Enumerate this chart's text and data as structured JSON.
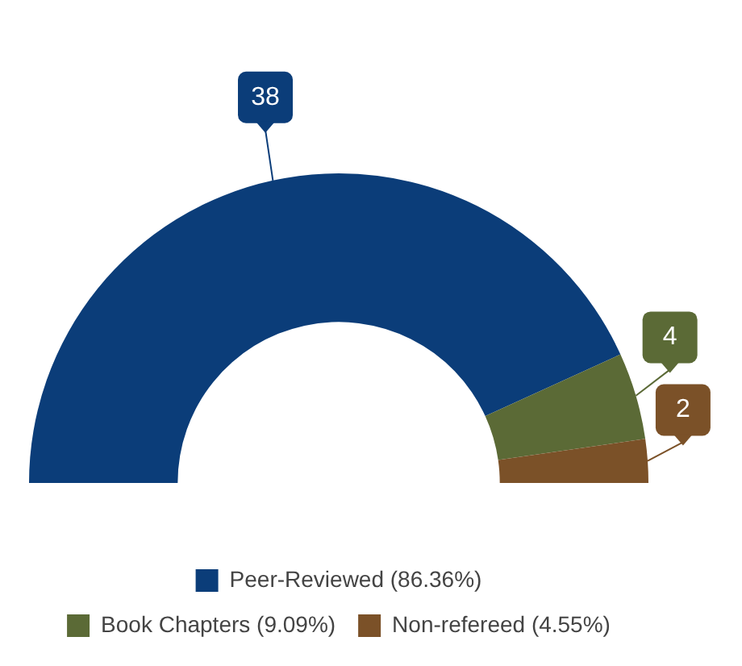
{
  "chart_data": {
    "type": "donut",
    "categories": [
      "Peer-Reviewed (86.36%)",
      "Book Chapters (9.09%)",
      "Non-refereed (4.55%)"
    ],
    "values": [
      38,
      4,
      2
    ],
    "colors": [
      "#0b3d79",
      "#5b6a36",
      "#7b5128"
    ],
    "data_labels": true,
    "legend": "bottom"
  }
}
